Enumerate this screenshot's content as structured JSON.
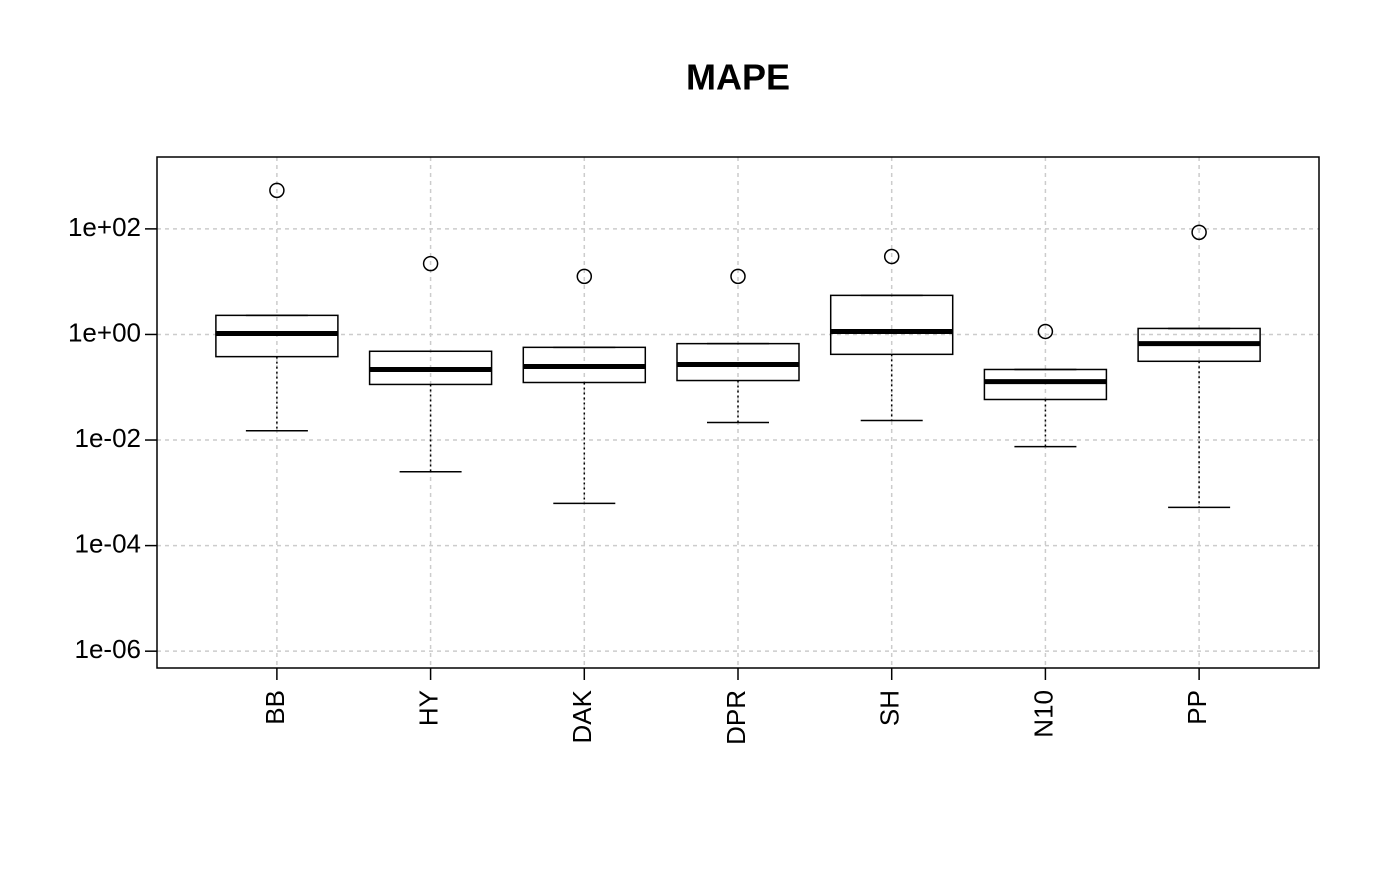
{
  "chart_data": {
    "type": "boxplot",
    "title": "MAPE",
    "categories": [
      "BB",
      "HY",
      "DAK",
      "DPR",
      "SH",
      "N10",
      "PP"
    ],
    "boxes": [
      {
        "min": 0.015,
        "q1": 0.38,
        "median": 1.04,
        "q3": 2.3,
        "max": 2.3,
        "outliers": [
          537
        ]
      },
      {
        "min": 0.0025,
        "q1": 0.113,
        "median": 0.217,
        "q3": 0.48,
        "max": 0.48,
        "outliers": [
          22
        ]
      },
      {
        "min": 0.00063,
        "q1": 0.123,
        "median": 0.247,
        "q3": 0.57,
        "max": 0.57,
        "outliers": [
          12.6
        ]
      },
      {
        "min": 0.0215,
        "q1": 0.134,
        "median": 0.27,
        "q3": 0.67,
        "max": 0.67,
        "outliers": [
          12.6
        ]
      },
      {
        "min": 0.0234,
        "q1": 0.42,
        "median": 1.14,
        "q3": 5.5,
        "max": 5.5,
        "outliers": [
          30
        ]
      },
      {
        "min": 0.0075,
        "q1": 0.0586,
        "median": 0.128,
        "q3": 0.217,
        "max": 0.217,
        "outliers": [
          1.14
        ]
      },
      {
        "min": 0.00053,
        "q1": 0.31,
        "median": 0.67,
        "q3": 1.3,
        "max": 1.3,
        "outliers": [
          86
        ]
      }
    ],
    "ylog": true,
    "ylim": [
      4.8e-07,
      2300
    ],
    "yticks": [
      {
        "value": 1e-06,
        "label": "1e-06"
      },
      {
        "value": 0.0001,
        "label": "1e-04"
      },
      {
        "value": 0.01,
        "label": "1e-02"
      },
      {
        "value": 1,
        "label": "1e+00"
      },
      {
        "value": 100,
        "label": "1e+02"
      }
    ],
    "grid": true,
    "color": "#000000"
  }
}
